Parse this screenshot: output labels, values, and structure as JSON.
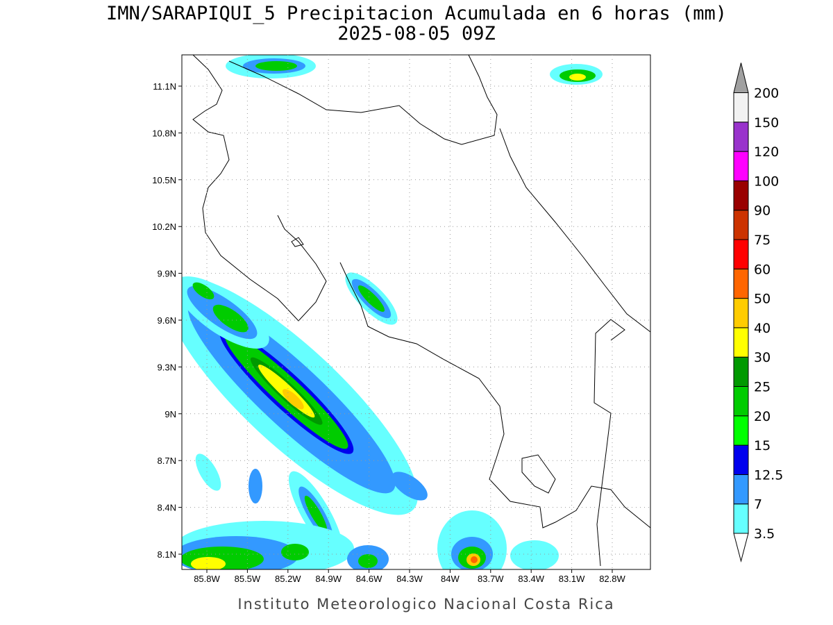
{
  "title": {
    "line1": "IMN/SARAPIQUI_5 Precipitacion Acumulada en 6 horas (mm)",
    "line2": "2025-08-05 09Z"
  },
  "map": {
    "lon_labels": [
      "85.8W",
      "85.5W",
      "85.2W",
      "84.9W",
      "84.6W",
      "84.3W",
      "84W",
      "83.7W",
      "83.4W",
      "83.1W",
      "82.8W"
    ],
    "lat_labels": [
      "11.1N",
      "10.8N",
      "10.5N",
      "10.2N",
      "9.9N",
      "9.6N",
      "9.3N",
      "9N",
      "8.7N",
      "8.4N",
      "8.1N"
    ]
  },
  "colorbar": {
    "levels": [
      "3.5",
      "7",
      "12.5",
      "15",
      "20",
      "25",
      "30",
      "40",
      "50",
      "60",
      "75",
      "90",
      "100",
      "120",
      "150",
      "200"
    ],
    "colors": [
      "#66ffff",
      "#3399ff",
      "#0000ee",
      "#00ff00",
      "#00cc00",
      "#009900",
      "#ffff00",
      "#ffcc00",
      "#ff6600",
      "#ff0000",
      "#cc3300",
      "#990000",
      "#ff00ff",
      "#9933cc",
      "#f2f2f2"
    ],
    "below_color": "#ffffff",
    "above_color": "#a0a0a0"
  },
  "footer": "Instituto Meteorologico Nacional Costa Rica"
}
